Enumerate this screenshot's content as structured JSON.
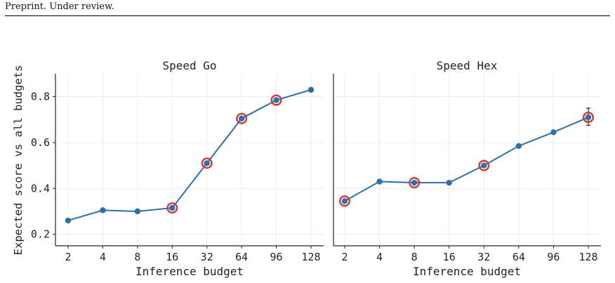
{
  "header": {
    "text": "Preprint. Under review."
  },
  "figure": {
    "ylabel": "Expected score vs all budgets",
    "xlabel": "Inference budget",
    "y_ticks": [
      "0.2",
      "0.4",
      "0.6",
      "0.8"
    ]
  },
  "chart_data": [
    {
      "type": "line",
      "title": "Speed Go",
      "xlabel": "Inference budget",
      "ylabel": "Expected score vs all budgets",
      "categories": [
        "2",
        "4",
        "8",
        "16",
        "32",
        "64",
        "96",
        "128"
      ],
      "values": [
        0.26,
        0.305,
        0.3,
        0.315,
        0.51,
        0.705,
        0.785,
        0.83
      ],
      "highlighted": [
        "16",
        "32",
        "64",
        "96"
      ],
      "ylim": [
        0.15,
        0.9
      ],
      "grid": true,
      "colors": {
        "line": "#2f6fad",
        "marker": "#2f6fad",
        "highlight": "#d03a2f"
      }
    },
    {
      "type": "line",
      "title": "Speed Hex",
      "xlabel": "Inference budget",
      "categories": [
        "2",
        "4",
        "8",
        "16",
        "32",
        "64",
        "96",
        "128"
      ],
      "values": [
        0.345,
        0.43,
        0.425,
        0.425,
        0.5,
        0.585,
        0.645,
        0.71
      ],
      "highlighted": [
        "2",
        "8",
        "32",
        "128"
      ],
      "error_bars": {
        "128": [
          0.675,
          0.75
        ]
      },
      "ylim": [
        0.15,
        0.9
      ],
      "grid": true,
      "colors": {
        "line": "#2f6fad",
        "marker": "#2f6fad",
        "highlight": "#d03a2f"
      }
    }
  ]
}
